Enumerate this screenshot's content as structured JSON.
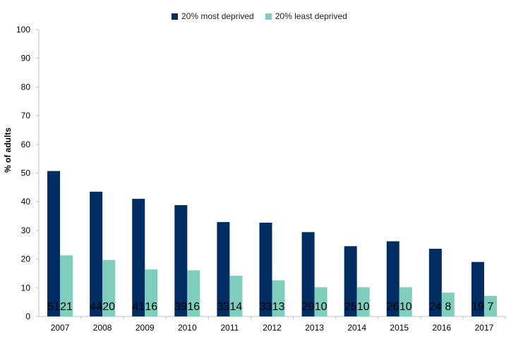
{
  "chart_data": {
    "type": "bar",
    "categories": [
      "2007",
      "2008",
      "2009",
      "2010",
      "2011",
      "2012",
      "2013",
      "2014",
      "2015",
      "2016",
      "2017"
    ],
    "series": [
      {
        "name": "20% most deprived",
        "color": "#002D62",
        "values": [
          51,
          44,
          41,
          39,
          33,
          33,
          29,
          25,
          26,
          24,
          19
        ],
        "bar_values": [
          50.7,
          43.5,
          41.0,
          38.8,
          32.9,
          32.7,
          29.4,
          24.5,
          26.2,
          23.6,
          19.0
        ]
      },
      {
        "name": "20% least deprived",
        "color": "#7FCDBB",
        "values": [
          21,
          20,
          16,
          16,
          14,
          13,
          10,
          10,
          10,
          8,
          7
        ],
        "bar_values": [
          21.3,
          19.7,
          16.4,
          16.1,
          14.2,
          12.6,
          10.2,
          10.2,
          10.2,
          8.3,
          7.2
        ]
      }
    ],
    "ylabel": "% of adults",
    "xlabel": "",
    "ylim": [
      0,
      100
    ],
    "yticks": [
      "0",
      "10",
      "20",
      "30",
      "40",
      "50",
      "60",
      "70",
      "80",
      "90",
      "100"
    ],
    "legend_position": "top",
    "grid": false
  }
}
